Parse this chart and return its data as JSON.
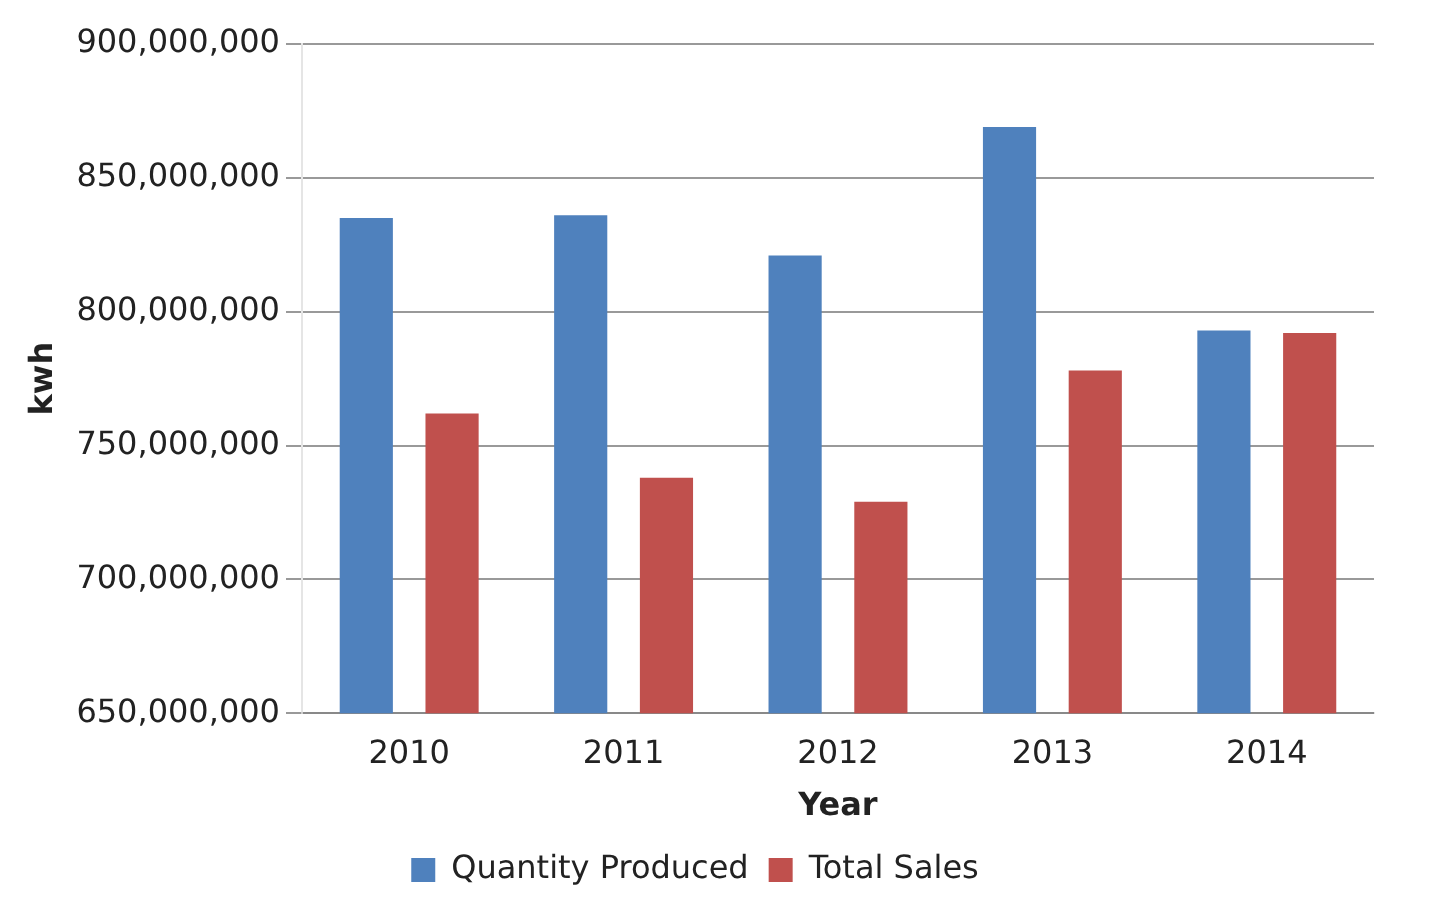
{
  "chart_data": {
    "type": "bar",
    "xlabel": "Year",
    "ylabel": "kwh",
    "categories": [
      "2010",
      "2011",
      "2012",
      "2013",
      "2014"
    ],
    "series": [
      {
        "name": "Quantity Produced",
        "color": "#4f81bd",
        "values": [
          835000000,
          836000000,
          821000000,
          869000000,
          793000000
        ]
      },
      {
        "name": "Total Sales",
        "color": "#c0504d",
        "values": [
          762000000,
          738000000,
          729000000,
          778000000,
          792000000
        ]
      }
    ],
    "ylim": [
      650000000,
      900000000
    ],
    "yticks": [
      {
        "value": 650000000,
        "label": "650,000,000"
      },
      {
        "value": 700000000,
        "label": "700,000,000"
      },
      {
        "value": 750000000,
        "label": "750,000,000"
      },
      {
        "value": 800000000,
        "label": "800,000,000"
      },
      {
        "value": 850000000,
        "label": "850,000,000"
      },
      {
        "value": 900000000,
        "label": "900,000,000"
      }
    ],
    "grid": "y",
    "legend": "bottom"
  }
}
